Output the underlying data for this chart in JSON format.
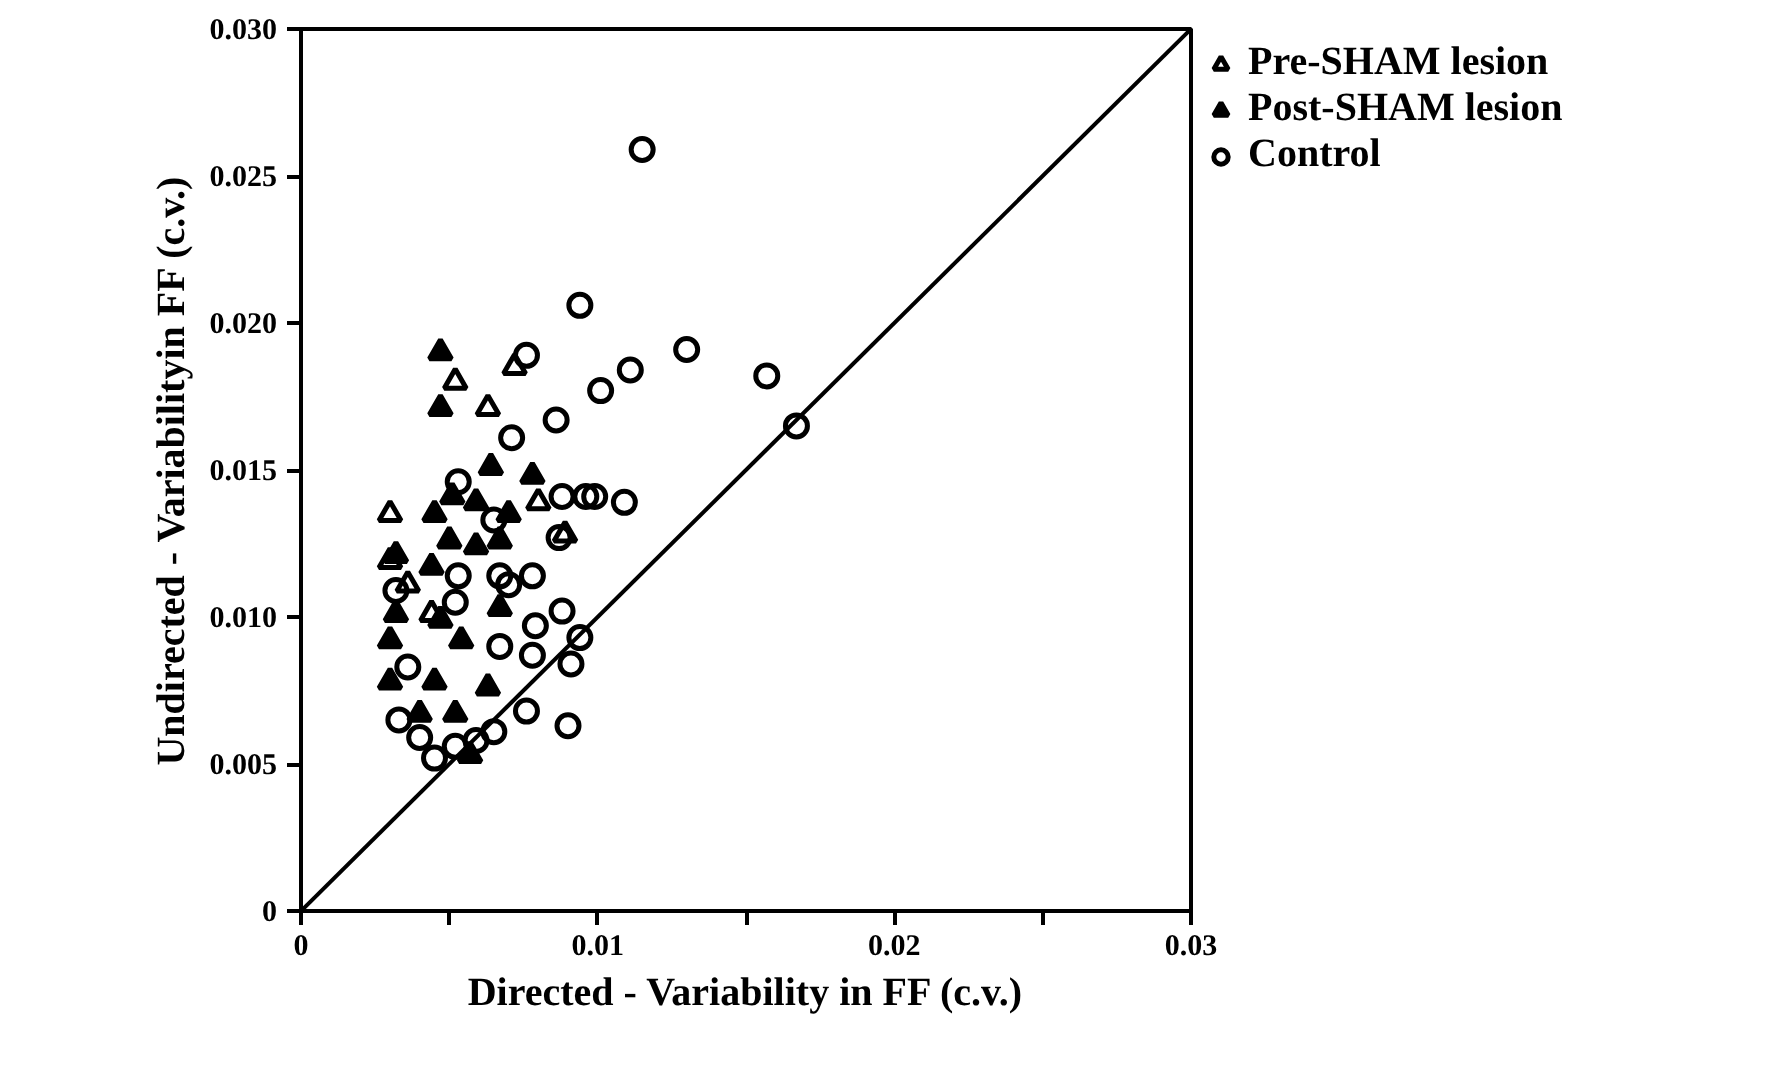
{
  "chart_data": {
    "type": "scatter",
    "xlabel": "Directed - Variability in FF (c.v.)",
    "ylabel": "Undirected - Variabilityin FF (c.v.)",
    "xlim": [
      0,
      0.03
    ],
    "ylim": [
      0,
      0.03
    ],
    "xticks": [
      0,
      {
        "value": 0.005,
        "label": null
      },
      0.01,
      {
        "value": 0.015,
        "label": null
      },
      0.02,
      {
        "value": 0.025,
        "label": null
      },
      0.03
    ],
    "yticks": [
      0,
      0.005,
      {
        "value": 0.01,
        "label": "0.010"
      },
      0.015,
      {
        "value": 0.02,
        "label": "0.020"
      },
      0.025,
      {
        "value": 0.03,
        "label": "0.030"
      }
    ],
    "grid": false,
    "legend": "top right",
    "series": [
      {
        "name": "Pre-SHAM lesion",
        "marker": "triangle",
        "color": "#000000",
        "x": [
          0.0052,
          0.0063,
          0.0072,
          0.003,
          0.008,
          0.0089,
          0.003,
          0.0044,
          0.0036
        ],
        "values": [
          0.018,
          0.0171,
          0.0185,
          0.0135,
          0.0139,
          0.0128,
          0.0119,
          0.0101,
          0.0111
        ]
      },
      {
        "name": "Post-SHAM lesion",
        "marker": "triangle",
        "color": "#000000",
        "x": [
          0.0047,
          0.0047,
          0.0064,
          0.0078,
          0.0045,
          0.007,
          0.0051,
          0.0059,
          0.005,
          0.0059,
          0.0067,
          0.0032,
          0.0044,
          0.003,
          0.003,
          0.0047,
          0.0054,
          0.0045,
          0.0063,
          0.004,
          0.0052,
          0.0057,
          0.0032,
          0.0067
        ],
        "values": [
          0.019,
          0.0171,
          0.0151,
          0.0148,
          0.0135,
          0.0135,
          0.0141,
          0.0139,
          0.0126,
          0.0124,
          0.0126,
          0.0121,
          0.0117,
          0.0078,
          0.0092,
          0.0099,
          0.0092,
          0.0078,
          0.0076,
          0.0067,
          0.0067,
          0.0053,
          0.0101,
          0.0103
        ]
      },
      {
        "name": "Control",
        "marker": "circle",
        "color": "#000000",
        "x": [
          0.0115,
          0.0101,
          0.0111,
          0.013,
          0.0157,
          0.0167,
          0.0099,
          0.0109,
          0.0094,
          0.0076,
          0.0086,
          0.0071,
          0.0053,
          0.0088,
          0.0096,
          0.0087,
          0.0065,
          0.0067,
          0.0078,
          0.0053,
          0.0088,
          0.0094,
          0.0091,
          0.009,
          0.0076,
          0.0065,
          0.0045,
          0.0033,
          0.004,
          0.0079,
          0.0078,
          0.0067,
          0.0052,
          0.0036,
          0.0059,
          0.0052,
          0.007,
          0.0032
        ],
        "values": [
          0.0259,
          0.0177,
          0.0184,
          0.0191,
          0.0182,
          0.0165,
          0.0141,
          0.0139,
          0.0206,
          0.0189,
          0.0167,
          0.0161,
          0.0146,
          0.0141,
          0.0141,
          0.0127,
          0.0133,
          0.0114,
          0.0114,
          0.0114,
          0.0102,
          0.0093,
          0.0084,
          0.0063,
          0.0068,
          0.0061,
          0.0052,
          0.0065,
          0.0059,
          0.0097,
          0.0087,
          0.009,
          0.0105,
          0.0083,
          0.0058,
          0.0056,
          0.0111,
          0.0109
        ]
      },
      {
        "type": "line",
        "color": "#000000",
        "x": [
          0,
          0.03
        ],
        "values": [
          0,
          0.03
        ]
      }
    ]
  }
}
